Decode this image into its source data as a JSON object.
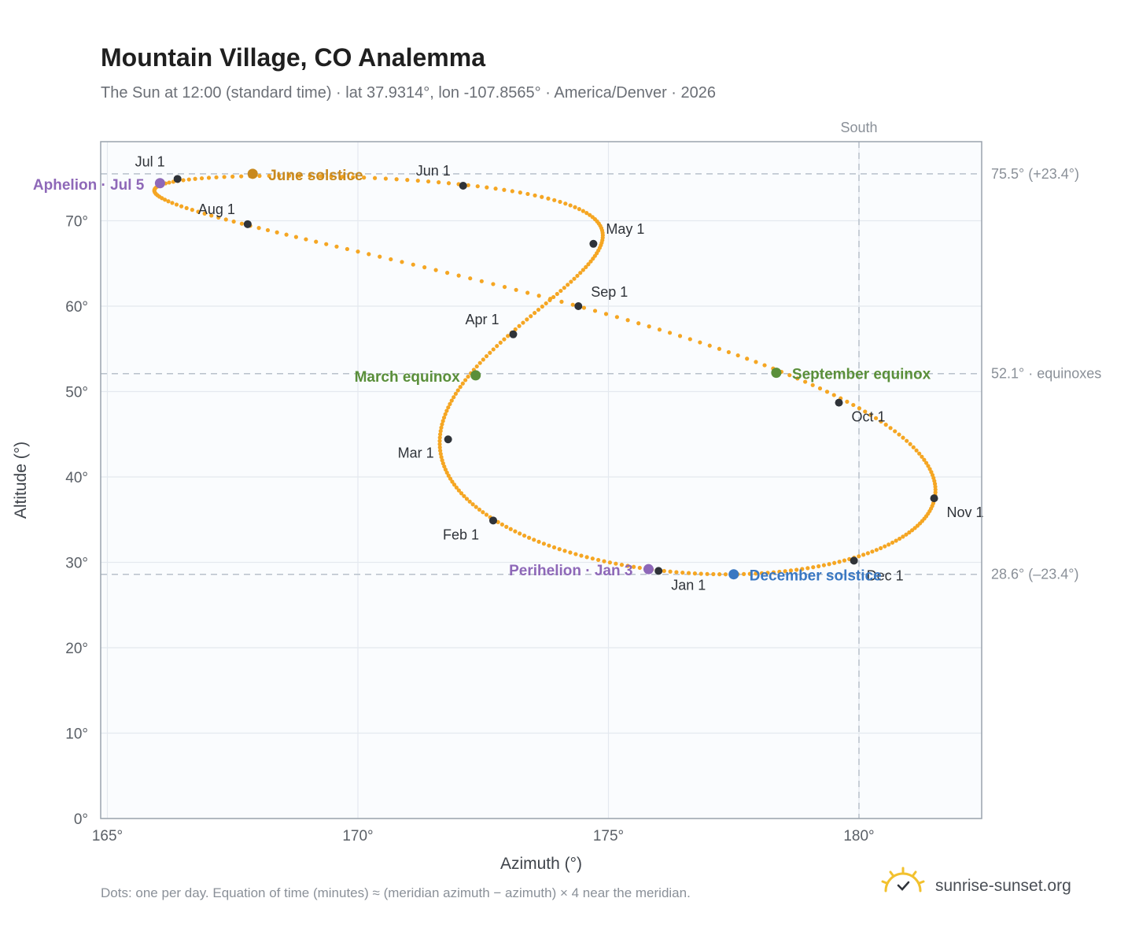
{
  "chart_data": {
    "type": "scatter",
    "title": "Mountain Village, CO Analemma",
    "subtitle": "The Sun at 12:00 (standard time) · lat 37.9314°, lon -107.8565° · America/Denver · 2026",
    "xlabel": "Azimuth (°)",
    "ylabel": "Altitude (°)",
    "xlim": [
      165,
      182.5
    ],
    "ylim": [
      0,
      79
    ],
    "x_ticks": [
      "165°",
      "170°",
      "175°",
      "180°"
    ],
    "x_tick_values": [
      165,
      170,
      175,
      180
    ],
    "y_ticks": [
      "0°",
      "10°",
      "20°",
      "30°",
      "40°",
      "50°",
      "60°",
      "70°"
    ],
    "y_tick_values": [
      0,
      10,
      20,
      30,
      40,
      50,
      60,
      70
    ],
    "grid": true,
    "series_color": "#f5a623",
    "meridian": {
      "azimuth": 180,
      "label": "South"
    },
    "reference_lines": [
      {
        "altitude": 75.5,
        "label": "75.5° (+23.4°)"
      },
      {
        "altitude": 52.1,
        "label": "52.1° · equinoxes"
      },
      {
        "altitude": 28.6,
        "label": "28.6° (–23.4°)"
      }
    ],
    "month_points": [
      {
        "label": "Jan 1",
        "az": 176.0,
        "alt": 29.0
      },
      {
        "label": "Feb 1",
        "az": 172.7,
        "alt": 34.9
      },
      {
        "label": "Mar 1",
        "az": 171.8,
        "alt": 44.4
      },
      {
        "label": "Apr 1",
        "az": 173.1,
        "alt": 56.7
      },
      {
        "label": "May 1",
        "az": 174.7,
        "alt": 67.3
      },
      {
        "label": "Jun 1",
        "az": 172.1,
        "alt": 74.1
      },
      {
        "label": "Jul 1",
        "az": 166.4,
        "alt": 74.9
      },
      {
        "label": "Aug 1",
        "az": 167.8,
        "alt": 69.6
      },
      {
        "label": "Sep 1",
        "az": 174.4,
        "alt": 60.0
      },
      {
        "label": "Oct 1",
        "az": 179.6,
        "alt": 48.7
      },
      {
        "label": "Nov 1",
        "az": 181.5,
        "alt": 37.5
      },
      {
        "label": "Dec 1",
        "az": 179.9,
        "alt": 30.2
      }
    ],
    "events": [
      {
        "label": "March equinox",
        "az": 172.35,
        "alt": 51.9,
        "color": "#5a8f3a"
      },
      {
        "label": "June solstice",
        "az": 167.9,
        "alt": 75.5,
        "color": "#c8891e"
      },
      {
        "label": "Aphelion · Jul 5",
        "az": 166.05,
        "alt": 74.4,
        "color": "#8e68b8"
      },
      {
        "label": "September equinox",
        "az": 178.35,
        "alt": 52.2,
        "color": "#5a8f3a"
      },
      {
        "label": "Perihelion · Jan 3",
        "az": 175.8,
        "alt": 29.2,
        "color": "#8e68b8"
      },
      {
        "label": "December solstice",
        "az": 177.5,
        "alt": 28.6,
        "color": "#3a78c2"
      }
    ],
    "footnote": "Dots: one per day. Equation of time (minutes) ≈ (meridian azimuth − azimuth) × 4 near the meridian.",
    "brand": "sunrise-sunset.org"
  }
}
